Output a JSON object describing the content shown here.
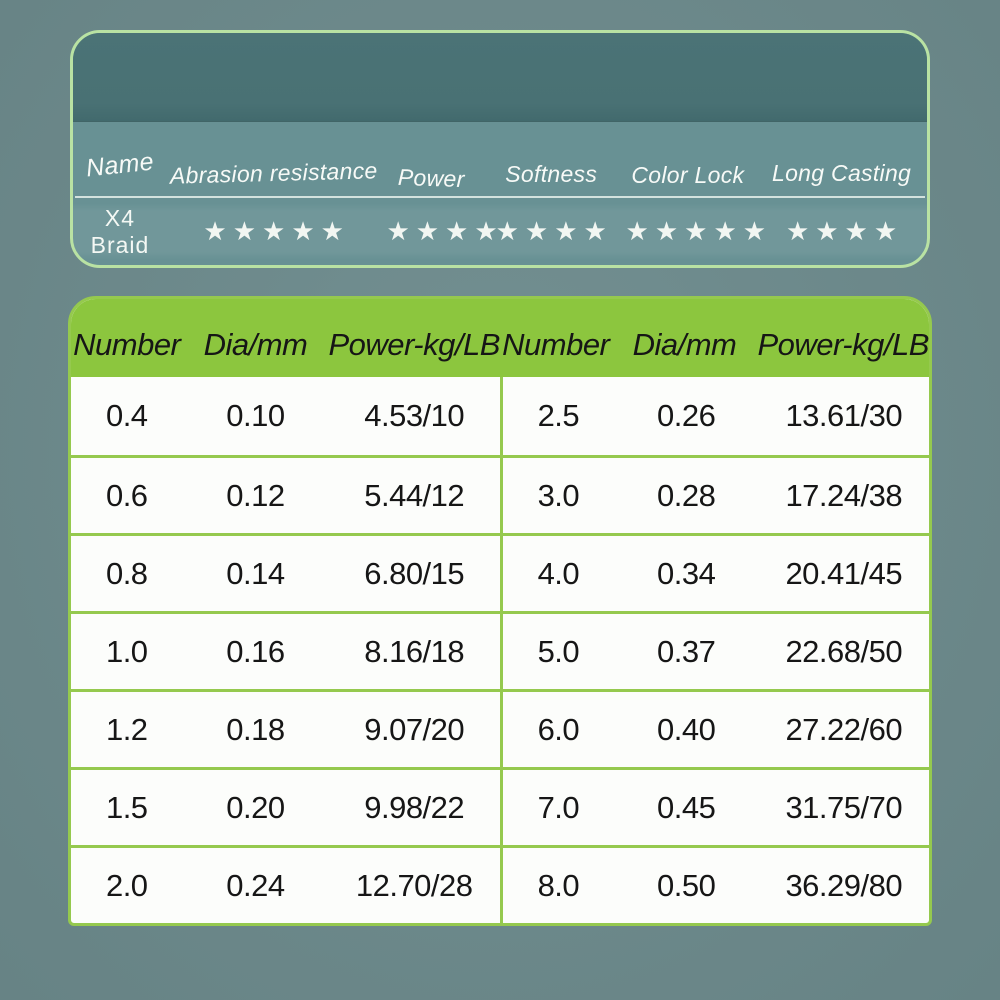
{
  "colors": {
    "page_background": "#6D8B8D",
    "card_border": "#B9E2A3",
    "card_header_background": "#497174",
    "card_body_background": "#689194",
    "green_header": "#8CC63E",
    "table_border": "#95C94E",
    "cell_background": "#FCFDFB",
    "dark_text": "#161616",
    "light_text": "#F7FAF7"
  },
  "ratings_card": {
    "columns": [
      "Name",
      "Abrasion resistance",
      "Power",
      "Softness",
      "Color Lock",
      "Long Casting"
    ],
    "product": "X4 Braid",
    "star_char": "★",
    "stars": [
      5,
      4,
      4,
      5,
      4
    ]
  },
  "spec_table": {
    "header": [
      "Number",
      "Dia/mm",
      "Power-kg/LB",
      "Number",
      "Dia/mm",
      "Power-kg/LB"
    ],
    "rows": [
      [
        "0.4",
        "0.10",
        "4.53/10",
        "2.5",
        "0.26",
        "13.61/30"
      ],
      [
        "0.6",
        "0.12",
        "5.44/12",
        "3.0",
        "0.28",
        "17.24/38"
      ],
      [
        "0.8",
        "0.14",
        "6.80/15",
        "4.0",
        "0.34",
        "20.41/45"
      ],
      [
        "1.0",
        "0.16",
        "8.16/18",
        "5.0",
        "0.37",
        "22.68/50"
      ],
      [
        "1.2",
        "0.18",
        "9.07/20",
        "6.0",
        "0.40",
        "27.22/60"
      ],
      [
        "1.5",
        "0.20",
        "9.98/22",
        "7.0",
        "0.45",
        "31.75/70"
      ],
      [
        "2.0",
        "0.24",
        "12.70/28",
        "8.0",
        "0.50",
        "36.29/80"
      ]
    ]
  }
}
